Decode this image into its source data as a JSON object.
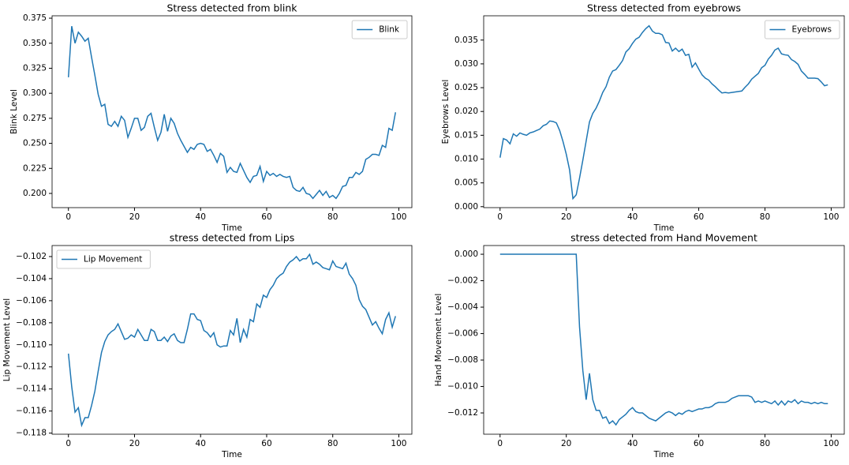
{
  "chart_data": [
    {
      "type": "line",
      "title": "Stress detected from blink",
      "xlabel": "Time",
      "ylabel": "Blink Level",
      "legend": "upper right",
      "x": [
        0,
        1,
        2,
        3,
        4,
        5,
        6,
        7,
        8,
        9,
        10,
        11,
        12,
        13,
        14,
        15,
        16,
        17,
        18,
        19,
        20,
        21,
        22,
        23,
        24,
        25,
        26,
        27,
        28,
        29,
        30,
        31,
        32,
        33,
        34,
        35,
        36,
        37,
        38,
        39,
        40,
        41,
        42,
        43,
        44,
        45,
        46,
        47,
        48,
        49,
        50,
        51,
        52,
        53,
        54,
        55,
        56,
        57,
        58,
        59,
        60,
        61,
        62,
        63,
        64,
        65,
        66,
        67,
        68,
        69,
        70,
        71,
        72,
        73,
        74,
        75,
        76,
        77,
        78,
        79,
        80,
        81,
        82,
        83,
        84,
        85,
        86,
        87,
        88,
        89,
        90,
        91,
        92,
        93,
        94,
        95,
        96,
        97,
        98,
        99
      ],
      "series": [
        {
          "name": "Blink",
          "color": "#1f77b4",
          "values": [
            0.316,
            0.367,
            0.35,
            0.361,
            0.357,
            0.352,
            0.355,
            0.336,
            0.318,
            0.299,
            0.287,
            0.289,
            0.269,
            0.267,
            0.272,
            0.267,
            0.277,
            0.273,
            0.256,
            0.265,
            0.275,
            0.275,
            0.263,
            0.266,
            0.277,
            0.28,
            0.266,
            0.253,
            0.261,
            0.279,
            0.262,
            0.275,
            0.27,
            0.26,
            0.253,
            0.247,
            0.241,
            0.246,
            0.244,
            0.249,
            0.25,
            0.249,
            0.242,
            0.244,
            0.238,
            0.231,
            0.24,
            0.237,
            0.221,
            0.226,
            0.222,
            0.221,
            0.23,
            0.223,
            0.216,
            0.211,
            0.217,
            0.218,
            0.227,
            0.212,
            0.222,
            0.218,
            0.22,
            0.217,
            0.219,
            0.217,
            0.216,
            0.217,
            0.206,
            0.203,
            0.202,
            0.206,
            0.2,
            0.199,
            0.195,
            0.199,
            0.203,
            0.198,
            0.202,
            0.196,
            0.198,
            0.195,
            0.2,
            0.207,
            0.208,
            0.216,
            0.216,
            0.221,
            0.219,
            0.222,
            0.234,
            0.236,
            0.239,
            0.239,
            0.238,
            0.248,
            0.246,
            0.265,
            0.263,
            0.281
          ]
        }
      ],
      "xlim": [
        -4.95,
        103.95
      ],
      "xticks": [
        0,
        20,
        40,
        60,
        80,
        100
      ],
      "ylim": [
        0.1858,
        0.3774
      ],
      "yticks": [
        {
          "value": 0.2,
          "label": "0.200"
        },
        0.225,
        {
          "value": 0.25,
          "label": "0.250"
        },
        0.275,
        {
          "value": 0.3,
          "label": "0.300"
        },
        0.325,
        {
          "value": 0.35,
          "label": "0.350"
        },
        0.375
      ]
    },
    {
      "type": "line",
      "title": "Stress detected from eyebrows",
      "xlabel": "Time",
      "ylabel": "Eyebrows Level",
      "legend": "upper right",
      "x": [
        0,
        1,
        2,
        3,
        4,
        5,
        6,
        7,
        8,
        9,
        10,
        11,
        12,
        13,
        14,
        15,
        16,
        17,
        18,
        19,
        20,
        21,
        22,
        23,
        24,
        25,
        26,
        27,
        28,
        29,
        30,
        31,
        32,
        33,
        34,
        35,
        36,
        37,
        38,
        39,
        40,
        41,
        42,
        43,
        44,
        45,
        46,
        47,
        48,
        49,
        50,
        51,
        52,
        53,
        54,
        55,
        56,
        57,
        58,
        59,
        60,
        61,
        62,
        63,
        64,
        65,
        66,
        67,
        68,
        69,
        70,
        71,
        72,
        73,
        74,
        75,
        76,
        77,
        78,
        79,
        80,
        81,
        82,
        83,
        84,
        85,
        86,
        87,
        88,
        89,
        90,
        91,
        92,
        93,
        94,
        95,
        96,
        97,
        98,
        99
      ],
      "series": [
        {
          "name": "Eyebrows",
          "color": "#1f77b4",
          "values": [
            0.0103,
            0.0143,
            0.014,
            0.0132,
            0.0153,
            0.0148,
            0.0155,
            0.0152,
            0.015,
            0.0155,
            0.0157,
            0.016,
            0.0163,
            0.017,
            0.0173,
            0.018,
            0.0179,
            0.0176,
            0.016,
            0.0137,
            0.011,
            0.0077,
            0.0017,
            0.0025,
            0.006,
            0.0098,
            0.0138,
            0.0178,
            0.0196,
            0.0207,
            0.0222,
            0.024,
            0.0252,
            0.0272,
            0.0285,
            0.0288,
            0.0297,
            0.0307,
            0.0325,
            0.0332,
            0.0343,
            0.0352,
            0.0356,
            0.0366,
            0.0374,
            0.038,
            0.0369,
            0.0364,
            0.0364,
            0.0361,
            0.0345,
            0.0344,
            0.0327,
            0.0333,
            0.0326,
            0.0331,
            0.0318,
            0.032,
            0.0293,
            0.0302,
            0.0289,
            0.0277,
            0.027,
            0.0266,
            0.0258,
            0.0252,
            0.0245,
            0.0239,
            0.024,
            0.0239,
            0.024,
            0.0241,
            0.0242,
            0.0243,
            0.0251,
            0.0258,
            0.0268,
            0.0274,
            0.028,
            0.0292,
            0.0297,
            0.031,
            0.0318,
            0.0329,
            0.0333,
            0.0321,
            0.0319,
            0.0318,
            0.0309,
            0.0305,
            0.0299,
            0.0285,
            0.0278,
            0.027,
            0.027,
            0.027,
            0.0269,
            0.0262,
            0.0254,
            0.0256
          ]
        }
      ],
      "xlim": [
        -4.95,
        103.95
      ],
      "xticks": [
        0,
        20,
        40,
        60,
        80,
        100
      ],
      "ylim": [
        -0.0002,
        0.0401
      ],
      "yticks": [
        {
          "value": 0,
          "label": "0.000"
        },
        0.005,
        {
          "value": 0.01,
          "label": "0.010"
        },
        0.015,
        {
          "value": 0.02,
          "label": "0.020"
        },
        0.025,
        {
          "value": 0.03,
          "label": "0.030"
        },
        0.035
      ]
    },
    {
      "type": "line",
      "title": "stress detected from Lips",
      "xlabel": "Time",
      "ylabel": "Lip Movement Level",
      "legend": "upper left",
      "x": [
        0,
        1,
        2,
        3,
        4,
        5,
        6,
        7,
        8,
        9,
        10,
        11,
        12,
        13,
        14,
        15,
        16,
        17,
        18,
        19,
        20,
        21,
        22,
        23,
        24,
        25,
        26,
        27,
        28,
        29,
        30,
        31,
        32,
        33,
        34,
        35,
        36,
        37,
        38,
        39,
        40,
        41,
        42,
        43,
        44,
        45,
        46,
        47,
        48,
        49,
        50,
        51,
        52,
        53,
        54,
        55,
        56,
        57,
        58,
        59,
        60,
        61,
        62,
        63,
        64,
        65,
        66,
        67,
        68,
        69,
        70,
        71,
        72,
        73,
        74,
        75,
        76,
        77,
        78,
        79,
        80,
        81,
        82,
        83,
        84,
        85,
        86,
        87,
        88,
        89,
        90,
        91,
        92,
        93,
        94,
        95,
        96,
        97,
        98,
        99
      ],
      "series": [
        {
          "name": "Lip Movement",
          "color": "#1f77b4",
          "values": [
            -0.1108,
            -0.1138,
            -0.1161,
            -0.1157,
            -0.1173,
            -0.1166,
            -0.1166,
            -0.1155,
            -0.1142,
            -0.1124,
            -0.1107,
            -0.1097,
            -0.1091,
            -0.1088,
            -0.1086,
            -0.1081,
            -0.1088,
            -0.1095,
            -0.1094,
            -0.1091,
            -0.1093,
            -0.1086,
            -0.1091,
            -0.1096,
            -0.1096,
            -0.1086,
            -0.1088,
            -0.1096,
            -0.1096,
            -0.1093,
            -0.1097,
            -0.1092,
            -0.109,
            -0.1096,
            -0.1098,
            -0.1098,
            -0.1086,
            -0.1072,
            -0.1072,
            -0.1077,
            -0.1078,
            -0.1087,
            -0.1089,
            -0.1093,
            -0.1089,
            -0.11,
            -0.1102,
            -0.1101,
            -0.1101,
            -0.1087,
            -0.1091,
            -0.1076,
            -0.1098,
            -0.1086,
            -0.1093,
            -0.1077,
            -0.1079,
            -0.1063,
            -0.1066,
            -0.1055,
            -0.1057,
            -0.105,
            -0.1046,
            -0.104,
            -0.1037,
            -0.1035,
            -0.1029,
            -0.1025,
            -0.1023,
            -0.102,
            -0.1024,
            -0.1022,
            -0.1022,
            -0.1018,
            -0.1027,
            -0.1025,
            -0.1027,
            -0.103,
            -0.1031,
            -0.1032,
            -0.1024,
            -0.1029,
            -0.103,
            -0.1031,
            -0.1026,
            -0.1036,
            -0.104,
            -0.1046,
            -0.1059,
            -0.1065,
            -0.1068,
            -0.1075,
            -0.1082,
            -0.1079,
            -0.1085,
            -0.109,
            -0.1077,
            -0.1071,
            -0.1084,
            -0.1074
          ]
        }
      ],
      "xlim": [
        -4.95,
        103.95
      ],
      "xticks": [
        0,
        20,
        40,
        60,
        80,
        100
      ],
      "ylim": [
        -0.1181,
        -0.101
      ],
      "yticks": [
        {
          "value": -0.118,
          "label": "−0.118"
        },
        {
          "value": -0.116,
          "label": "−0.116"
        },
        {
          "value": -0.114,
          "label": "−0.114"
        },
        {
          "value": -0.112,
          "label": "−0.112"
        },
        {
          "value": -0.11,
          "label": "−0.110"
        },
        {
          "value": -0.108,
          "label": "−0.108"
        },
        {
          "value": -0.106,
          "label": "−0.106"
        },
        {
          "value": -0.104,
          "label": "−0.104"
        },
        {
          "value": -0.102,
          "label": "−0.102"
        }
      ]
    },
    {
      "type": "line",
      "title": "stress detected from Hand Movement",
      "xlabel": "Time",
      "ylabel": "Hand Movement Level",
      "x": [
        0,
        1,
        2,
        3,
        4,
        5,
        6,
        7,
        8,
        9,
        10,
        11,
        12,
        13,
        14,
        15,
        16,
        17,
        18,
        19,
        20,
        21,
        22,
        23,
        24,
        25,
        26,
        27,
        28,
        29,
        30,
        31,
        32,
        33,
        34,
        35,
        36,
        37,
        38,
        39,
        40,
        41,
        42,
        43,
        44,
        45,
        46,
        47,
        48,
        49,
        50,
        51,
        52,
        53,
        54,
        55,
        56,
        57,
        58,
        59,
        60,
        61,
        62,
        63,
        64,
        65,
        66,
        67,
        68,
        69,
        70,
        71,
        72,
        73,
        74,
        75,
        76,
        77,
        78,
        79,
        80,
        81,
        82,
        83,
        84,
        85,
        86,
        87,
        88,
        89,
        90,
        91,
        92,
        93,
        94,
        95,
        96,
        97,
        98,
        99
      ],
      "series": [
        {
          "color": "#1f77b4",
          "values": [
            0,
            0,
            0,
            0,
            0,
            0,
            0,
            0,
            0,
            0,
            0,
            0,
            0,
            0,
            0,
            0,
            0,
            0,
            0,
            0,
            0,
            0,
            0,
            0,
            -0.0055,
            -0.0088,
            -0.011,
            -0.009,
            -0.011,
            -0.0118,
            -0.0118,
            -0.0124,
            -0.0123,
            -0.0128,
            -0.0126,
            -0.0129,
            -0.0125,
            -0.0123,
            -0.0121,
            -0.0118,
            -0.0116,
            -0.0119,
            -0.012,
            -0.012,
            -0.0122,
            -0.0124,
            -0.0125,
            -0.0126,
            -0.0124,
            -0.0122,
            -0.012,
            -0.0119,
            -0.012,
            -0.0122,
            -0.012,
            -0.0121,
            -0.0119,
            -0.0118,
            -0.0119,
            -0.0118,
            -0.0117,
            -0.0117,
            -0.0116,
            -0.0116,
            -0.0115,
            -0.0113,
            -0.0112,
            -0.0112,
            -0.0112,
            -0.0111,
            -0.0109,
            -0.0108,
            -0.0107,
            -0.0107,
            -0.0107,
            -0.0107,
            -0.0108,
            -0.0112,
            -0.0111,
            -0.0112,
            -0.0111,
            -0.0112,
            -0.0113,
            -0.0111,
            -0.0114,
            -0.0111,
            -0.0114,
            -0.0111,
            -0.0112,
            -0.011,
            -0.0113,
            -0.0111,
            -0.0112,
            -0.0112,
            -0.0113,
            -0.0112,
            -0.0113,
            -0.0112,
            -0.0113,
            -0.0113
          ]
        }
      ],
      "xlim": [
        -4.95,
        103.95
      ],
      "xticks": [
        0,
        20,
        40,
        60,
        80,
        100
      ],
      "ylim": [
        -0.01361,
        0.00066
      ],
      "yticks": [
        {
          "value": -0.012,
          "label": "−0.012"
        },
        {
          "value": -0.01,
          "label": "−0.010"
        },
        {
          "value": -0.008,
          "label": "−0.008"
        },
        {
          "value": -0.006,
          "label": "−0.006"
        },
        {
          "value": -0.004,
          "label": "−0.004"
        },
        {
          "value": -0.002,
          "label": "−0.002"
        },
        {
          "value": 0,
          "label": "0.000"
        }
      ]
    }
  ]
}
